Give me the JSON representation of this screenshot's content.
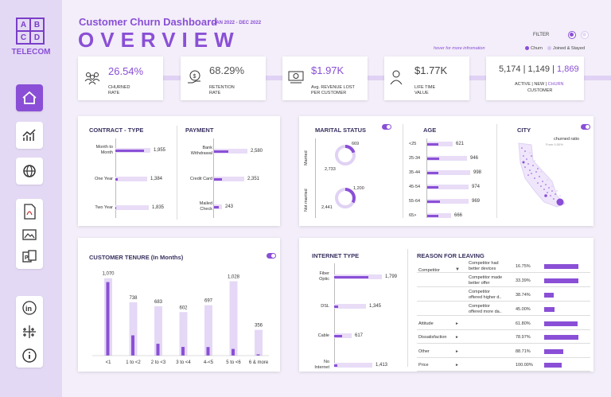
{
  "logo": {
    "letters": [
      "A",
      "B",
      "C",
      "D"
    ],
    "brand": "TELECOM"
  },
  "header": {
    "title": "Customer Churn Dashboard",
    "date_range": "JAN 2022 - DEC 2022",
    "big_title": "OVERVIEW",
    "hover_note": "hover for more infromation",
    "filter_label": "FILTER",
    "legend_churn": "Churn",
    "legend_joined": "Joined & Stayed"
  },
  "colors": {
    "accent": "#8a4fd6",
    "light": "#e8dcf7",
    "bg": "#f3eef9",
    "sidebar": "#e4d9f4"
  },
  "sidebar_icons": [
    "home-icon",
    "growth-chart-icon",
    "globe-icon",
    "pdf-icon",
    "image-icon",
    "powerpoint-icon",
    "linkedin-icon",
    "tableau-icon",
    "info-icon"
  ],
  "kpis": {
    "churned": {
      "value": "26.54%",
      "label1": "CHURNED",
      "label2": "RATE"
    },
    "retention": {
      "value": "68.29%",
      "label1": "RETENTION",
      "label2": "RATE"
    },
    "revenue_lost": {
      "value": "$1.97K",
      "label1": "Avg. REVENUE LOST",
      "label2": "PER CUSTOMER"
    },
    "lifetime": {
      "value": "$1.77K",
      "label1": "LIFE TIME",
      "label2": "VALUE"
    },
    "customers": {
      "active": "5,174",
      "sep1": "|",
      "new": "1,149",
      "sep2": "|",
      "churn": "1,869",
      "label_active": "ACTIVE | NEW |",
      "label_churn": "CHURN",
      "label2": "CUSTOMER"
    }
  },
  "contract": {
    "title": "CONTRACT - TYPE",
    "rows": [
      {
        "label1": "Month to",
        "label2": "Month",
        "value": "1,955",
        "fill": 0.82
      },
      {
        "label1": "One Year",
        "label2": "",
        "value": "1,384",
        "fill": 0.08
      },
      {
        "label1": "Two Year",
        "label2": "",
        "value": "1,835",
        "fill": 0.03
      }
    ]
  },
  "payment": {
    "title": "PAYMENT",
    "rows": [
      {
        "label1": "Bank",
        "label2": "Withdrawal",
        "value": "2,580",
        "fill": 0.42
      },
      {
        "label1": "Credit Card",
        "label2": "",
        "value": "2,351",
        "fill": 0.26
      },
      {
        "label1": "Mailed",
        "label2": "Check",
        "value": "243",
        "fill": 0.55
      }
    ]
  },
  "marital": {
    "title": "MARITAL STATUS",
    "married": {
      "label": "Married",
      "churn": "669",
      "stayed": "2,733",
      "churn_frac": 0.2
    },
    "not_married": {
      "label": "Not married",
      "churn": "1,200",
      "stayed": "2,441",
      "churn_frac": 0.33
    }
  },
  "age": {
    "title": "AGE",
    "rows": [
      {
        "label": "<25",
        "value": "621",
        "fill": 0.45
      },
      {
        "label": "25-34",
        "value": "946",
        "fill": 0.3
      },
      {
        "label": "35-44",
        "value": "998",
        "fill": 0.25
      },
      {
        "label": "45-54",
        "value": "974",
        "fill": 0.26
      },
      {
        "label": "55-64",
        "value": "969",
        "fill": 0.3
      },
      {
        "label": "65>",
        "value": "666",
        "fill": 0.45
      }
    ]
  },
  "city": {
    "title": "CITY",
    "legend_title": "churned ratio",
    "legend_sub": "From 0.00%"
  },
  "tenure": {
    "title": "CUSTOMER TENURE (In Months)"
  },
  "chart_data": {
    "type": "bar",
    "categories": [
      "<1",
      "1 to <2",
      "2 to <3",
      "3 to <4",
      "4-<5",
      "5 to <6",
      "6 & more"
    ],
    "series": [
      {
        "values": [
          1070,
          738,
          683,
          602,
          697,
          1028,
          356
        ]
      }
    ],
    "churn_share": [
      0.95,
      0.38,
      0.24,
      0.2,
      0.17,
      0.09,
      0.05
    ],
    "labels": [
      "1,070",
      "738",
      "683",
      "602",
      "697",
      "1,028",
      "356"
    ],
    "ylim": [
      0,
      1100
    ]
  },
  "internet": {
    "title": "INTERNET TYPE",
    "rows": [
      {
        "label1": "Fiber",
        "label2": "Optic",
        "value": "1,799",
        "fill": 0.72
      },
      {
        "label1": "DSL",
        "label2": "",
        "value": "1,345",
        "fill": 0.12
      },
      {
        "label1": "Cable",
        "label2": "",
        "value": "617",
        "fill": 0.45
      },
      {
        "label1": "No",
        "label2": "Internet",
        "value": "1,413",
        "fill": 0.08
      }
    ]
  },
  "reasons": {
    "title": "REASON FOR LEAVING",
    "competitor_label": "Competitor",
    "rows": [
      {
        "cat": "",
        "sub1": "Competitor had",
        "sub2": "better devices",
        "pct": "16.75%",
        "fill": 0.98
      },
      {
        "cat": "",
        "sub1": "Competitor made",
        "sub2": "better offer",
        "pct": "33.39%",
        "fill": 0.98
      },
      {
        "cat": "",
        "sub1": "Competitor",
        "sub2": "offered higher d..",
        "pct": "38.74%",
        "fill": 0.28
      },
      {
        "cat": "",
        "sub1": "Competitor",
        "sub2": "offered more da..",
        "pct": "45.00%",
        "fill": 0.3
      },
      {
        "cat": "Attitude",
        "sub1": "",
        "sub2": "",
        "pct": "61.80%",
        "fill": 0.95
      },
      {
        "cat": "Dissatisfaction",
        "sub1": "",
        "sub2": "",
        "pct": "78.97%",
        "fill": 0.98
      },
      {
        "cat": "Other",
        "sub1": "",
        "sub2": "",
        "pct": "88.71%",
        "fill": 0.55
      },
      {
        "cat": "Price",
        "sub1": "",
        "sub2": "",
        "pct": "100.00%",
        "fill": 0.5
      }
    ]
  }
}
